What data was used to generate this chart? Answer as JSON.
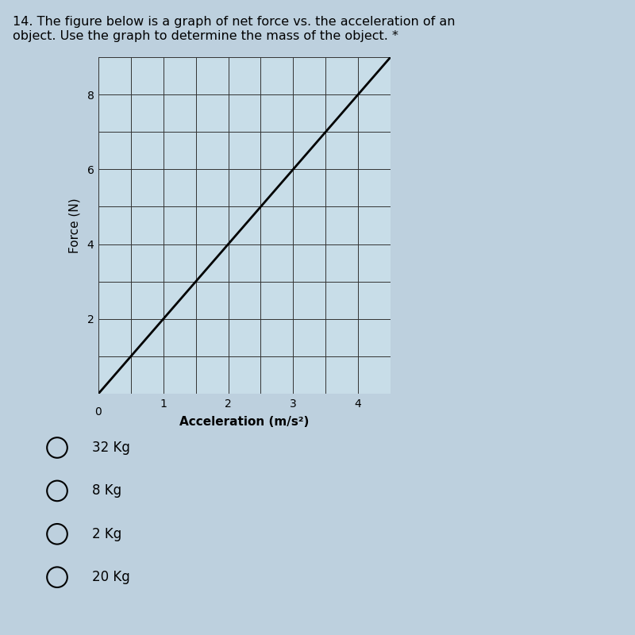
{
  "title_line1": "14. The figure below is a graph of net force vs. the acceleration of an",
  "title_line2": "object. Use the graph to determine the mass of the object. *",
  "xlabel": "Acceleration (m/s²)",
  "ylabel": "Force (N)",
  "xlim": [
    0,
    4.5
  ],
  "ylim": [
    0,
    9.0
  ],
  "xticks": [
    0,
    1,
    2,
    3,
    4
  ],
  "yticks": [
    2,
    4,
    6,
    8
  ],
  "line_x": [
    0,
    4.5
  ],
  "line_y": [
    0,
    9.0
  ],
  "line_color": "#000000",
  "grid_major_color": "#333333",
  "grid_minor_color": "#333333",
  "background_color": "#bdd0de",
  "plot_bg_color": "#c8dde8",
  "fig_bg_color": "#bdd0de",
  "choices": [
    "32 Kg",
    "8 Kg",
    "2 Kg",
    "20 Kg"
  ],
  "title_fontsize": 11.5,
  "axis_label_fontsize": 11,
  "tick_fontsize": 10,
  "choice_fontsize": 12,
  "x_minor_step": 0.5,
  "y_minor_step": 1.0
}
